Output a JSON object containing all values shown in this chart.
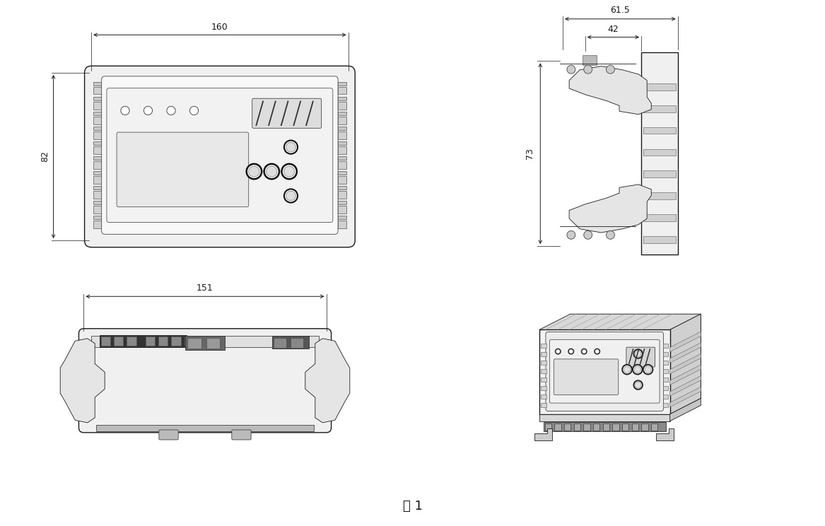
{
  "bg_color": "#ffffff",
  "lc": "#1a1a1a",
  "dc": "#1a1a1a",
  "fc_body": "#ffffff",
  "fc_inner": "#f5f5f5",
  "fc_fin": "#e8e8e8",
  "fc_btn": "#1a1a1a",
  "fc_disp": "#ececec",
  "fc_dark": "#555555",
  "fig_label": "图 1",
  "dim_160": "160",
  "dim_82": "82",
  "dim_61_5": "61.5",
  "dim_42": "42",
  "dim_73": "73",
  "dim_151": "151",
  "fs_dim": 9,
  "fs_label": 13
}
